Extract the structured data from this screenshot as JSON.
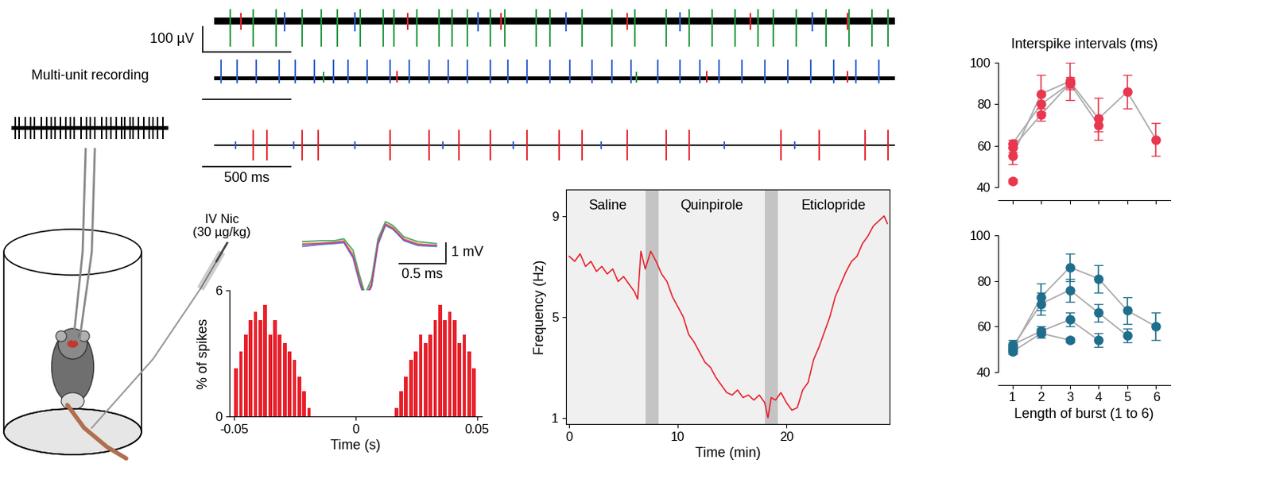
{
  "chart_data": [
    {
      "type": "trace",
      "title": "Multi-unit recording",
      "xlim": [
        0,
        900
      ],
      "ylim": [
        -70,
        70
      ],
      "time_range": [
        0,
        900
      ],
      "noise": 10,
      "spikes": [
        {
          "color": "#000000",
          "lo": -60,
          "hi": 60,
          "times": [
            20,
            45,
            80,
            110,
            130,
            170,
            200,
            230,
            250,
            280,
            310,
            340,
            360,
            400,
            430,
            450,
            480,
            520,
            545,
            570,
            600,
            630,
            650,
            680,
            700,
            730,
            760,
            790,
            810,
            840,
            870
          ]
        }
      ]
    },
    {
      "type": "trace",
      "xlim": [
        -70,
        3870
      ],
      "ylim": [
        -110,
        70
      ],
      "time_range": [
        0,
        3870
      ],
      "noise": 14,
      "scale_time": 500,
      "scale_voltage": 100,
      "scale_voltage_label": "100 µV",
      "spikes": [
        {
          "color": "#1f9a3c",
          "lo": -100,
          "hi": 45,
          "times": [
            90,
            220,
            350,
            500,
            610,
            700,
            830,
            960,
            1020,
            1150,
            1280,
            1350,
            1440,
            1570,
            1650,
            1830,
            1910,
            2090,
            2260,
            2390,
            2570,
            2700,
            2830,
            2960,
            3090,
            3180,
            3310,
            3480,
            3610,
            3740,
            3830
          ]
        },
        {
          "color": "#e8202a",
          "lo": -35,
          "hi": 30,
          "times": [
            150,
            1100,
            1630,
            2350,
            3050,
            3600
          ]
        },
        {
          "color": "#2f5fd0",
          "lo": -40,
          "hi": 35,
          "times": [
            400,
            800,
            1500,
            2000,
            2650,
            3400
          ]
        }
      ]
    },
    {
      "type": "trace",
      "xlim": [
        -70,
        3870
      ],
      "ylim": [
        -40,
        80
      ],
      "time_range": [
        0,
        3870
      ],
      "noise": 7,
      "scale_time": 500,
      "spikes": [
        {
          "color": "#2f5fd0",
          "lo": -20,
          "hi": 75,
          "times": [
            40,
            130,
            240,
            370,
            460,
            570,
            680,
            760,
            870,
            1000,
            1110,
            1220,
            1330,
            1440,
            1570,
            1670,
            1780,
            1910,
            2020,
            2150,
            2260,
            2370,
            2520,
            2650,
            2760,
            2870,
            3000,
            3130,
            3260,
            3390,
            3520,
            3650,
            3780
          ]
        },
        {
          "color": "#e8202a",
          "lo": -15,
          "hi": 30,
          "times": [
            1040,
            2800,
            3600
          ]
        },
        {
          "color": "#1f9a3c",
          "lo": -15,
          "hi": 25,
          "times": [
            620,
            2400
          ]
        }
      ]
    },
    {
      "type": "trace",
      "xlim": [
        -70,
        3870
      ],
      "ylim": [
        -70,
        70
      ],
      "time_range": [
        0,
        3870
      ],
      "noise": 4,
      "scale_time": 500,
      "scale_time_label": "500 ms",
      "spikes": [
        {
          "color": "#2f5fd0",
          "lo": -15,
          "hi": 15,
          "times": [
            120,
            450,
            800,
            1300,
            1700,
            2200,
            2900,
            3300
          ]
        },
        {
          "color": "#e8202a",
          "lo": -60,
          "hi": 60,
          "times": [
            220,
            300,
            500,
            590,
            1000,
            1220,
            1390,
            1570,
            1780,
            1960,
            2090,
            2350,
            2570,
            2700,
            3220,
            3440,
            3700,
            3830
          ]
        }
      ]
    },
    {
      "type": "waveform",
      "xlim": [
        0,
        1.9
      ],
      "ylim": [
        -3.2,
        2
      ],
      "t": [
        0,
        0.2,
        0.35,
        0.45,
        0.55,
        0.62,
        0.68,
        0.75,
        0.82,
        0.9,
        0.98,
        1.1,
        1.25,
        1.45
      ],
      "waveforms": [
        {
          "color": "#e8a03a",
          "values": [
            0.05,
            0.08,
            0.12,
            0.2,
            -0.5,
            -1.8,
            -2.8,
            -2.0,
            0.2,
            1.1,
            0.9,
            0.3,
            0.05,
            -0.05
          ]
        },
        {
          "color": "#3a6fd8",
          "values": [
            -0.1,
            0.0,
            0.05,
            0.1,
            -0.7,
            -2.0,
            -2.9,
            -2.2,
            0.0,
            1.0,
            0.8,
            0.2,
            -0.05,
            -0.1
          ]
        },
        {
          "color": "#3aa05a",
          "values": [
            0.15,
            0.2,
            0.2,
            0.3,
            -0.3,
            -1.6,
            -2.6,
            -1.8,
            0.3,
            1.2,
            1.0,
            0.4,
            0.15,
            0.05
          ]
        },
        {
          "color": "#c83a8a",
          "values": [
            0.0,
            0.05,
            0.1,
            0.15,
            -0.6,
            -1.9,
            -2.75,
            -2.1,
            0.1,
            1.05,
            0.85,
            0.25,
            0.0,
            -0.05
          ]
        }
      ],
      "scale_time": 0.5,
      "scale_time_label": "0.5 ms",
      "scale_voltage": 1,
      "scale_voltage_label": "1 mV"
    },
    {
      "type": "histogram",
      "xlabel": "Time (s)",
      "ylabel": "% of spikes",
      "color": "#e8202a",
      "bins": [
        -0.05,
        -0.048,
        -0.046,
        -0.044,
        -0.042,
        -0.04,
        -0.038,
        -0.036,
        -0.034,
        -0.032,
        -0.03,
        -0.028,
        -0.026,
        -0.024,
        -0.022,
        -0.02,
        -0.018,
        -0.016,
        -0.014,
        -0.012,
        -0.01,
        -0.008,
        -0.006,
        -0.004,
        -0.002,
        0,
        0.002,
        0.004,
        0.006,
        0.008,
        0.01,
        0.012,
        0.014,
        0.016,
        0.018,
        0.02,
        0.022,
        0.024,
        0.026,
        0.028,
        0.03,
        0.032,
        0.034,
        0.036,
        0.038,
        0.04,
        0.042,
        0.044,
        0.046,
        0.048,
        0.05
      ],
      "counts": [
        2.3,
        3.1,
        3.9,
        4.6,
        5.0,
        4.6,
        5.3,
        3.9,
        4.6,
        3.9,
        3.5,
        3.1,
        2.7,
        1.9,
        1.2,
        0.4,
        0,
        0,
        0,
        0,
        0,
        0,
        0,
        0,
        0,
        0,
        0,
        0,
        0,
        0,
        0,
        0,
        0,
        0.4,
        1.2,
        1.9,
        2.7,
        3.1,
        3.9,
        3.5,
        3.9,
        4.6,
        5.3,
        4.6,
        5.0,
        4.6,
        3.5,
        3.9,
        3.1,
        2.3
      ],
      "xlim": [
        -0.052,
        0.052
      ],
      "ylim": [
        0,
        6
      ],
      "xticks": [
        -0.05,
        0,
        0.05
      ],
      "yticks": [
        0,
        6
      ]
    },
    {
      "type": "line",
      "xlabel": "Time (min)",
      "ylabel": "Frequency (Hz)",
      "color": "#e8202a",
      "x": [
        0,
        0.5,
        1,
        1.5,
        2,
        2.5,
        3,
        3.5,
        4,
        4.5,
        5,
        5.5,
        6,
        6.3,
        6.6,
        7,
        7.5,
        8,
        8.5,
        9,
        9.5,
        10,
        10.5,
        11,
        11.5,
        12,
        12.5,
        13,
        13.5,
        14,
        14.5,
        15,
        15.5,
        16,
        16.5,
        17,
        17.5,
        18,
        18.3,
        18.6,
        19,
        19.5,
        20,
        20.5,
        21,
        21.5,
        22,
        22.5,
        23,
        23.5,
        24,
        24.5,
        25,
        25.5,
        26,
        26.5,
        27,
        27.5,
        28,
        28.5,
        29,
        29.3
      ],
      "values": [
        7.4,
        7.2,
        7.5,
        7.0,
        7.2,
        6.8,
        7.0,
        6.7,
        6.9,
        6.4,
        6.6,
        6.3,
        6.0,
        5.7,
        7.6,
        6.9,
        7.6,
        7.2,
        6.7,
        6.4,
        5.8,
        5.4,
        5.0,
        4.3,
        4.0,
        3.6,
        3.2,
        3.0,
        2.6,
        2.3,
        2.0,
        1.9,
        2.1,
        1.8,
        1.9,
        1.7,
        1.9,
        1.6,
        1.0,
        1.8,
        1.7,
        2.0,
        1.6,
        1.3,
        1.4,
        2.1,
        2.4,
        3.3,
        3.8,
        4.4,
        5.0,
        5.8,
        6.3,
        6.8,
        7.2,
        7.4,
        7.9,
        8.2,
        8.6,
        8.8,
        9.0,
        8.7
      ],
      "periods": [
        {
          "label": "Saline",
          "start": 0,
          "end": 7
        },
        {
          "label": "Quinpirole",
          "start": 8.2,
          "end": 18
        },
        {
          "label": "Eticlopride",
          "start": 19.2,
          "end": 29.5
        }
      ],
      "injections": [
        [
          7,
          8.2
        ],
        [
          18,
          19.2
        ]
      ],
      "xlim": [
        -0.3,
        29.5
      ],
      "ylim": [
        0.75,
        10.05
      ],
      "xticks": [
        0,
        10,
        20
      ],
      "yticks": [
        1,
        5,
        9
      ]
    },
    {
      "type": "errorbar",
      "title": "Interspike intervals (ms)",
      "color": "#e8374f",
      "tick_labels": "y",
      "x": [
        1,
        2,
        3,
        4,
        5,
        6
      ],
      "series": [
        {
          "values": [
            55,
            85,
            91,
            73,
            86,
            63
          ],
          "errors": [
            4,
            9,
            9,
            10,
            8,
            8
          ]
        },
        {
          "values": [
            61,
            80,
            90,
            70,
            null,
            null
          ],
          "errors": [
            2,
            4,
            3,
            3,
            null,
            null
          ]
        },
        {
          "values": [
            59,
            75,
            90,
            null,
            null,
            null
          ],
          "errors": [
            2,
            3,
            2,
            null,
            null,
            null
          ]
        },
        {
          "values": [
            43,
            null,
            null,
            null,
            null,
            null
          ],
          "errors": [
            1,
            null,
            null,
            null,
            null,
            null
          ]
        }
      ],
      "xlim": [
        0.5,
        6.5
      ],
      "ylim": [
        40,
        100
      ],
      "xticks": [
        1,
        2,
        3,
        4,
        5,
        6
      ],
      "yticks": [
        40,
        60,
        80,
        100
      ]
    },
    {
      "type": "errorbar",
      "xlabel": "Length of burst (1 to 6)",
      "color": "#1f6e8c",
      "x": [
        1,
        2,
        3,
        4,
        5,
        6
      ],
      "series": [
        {
          "values": [
            50,
            73,
            86,
            81,
            67,
            60
          ],
          "errors": [
            2,
            6,
            6,
            6,
            6,
            6
          ]
        },
        {
          "values": [
            51,
            70,
            76,
            66,
            56,
            null
          ],
          "errors": [
            2,
            5,
            5,
            4,
            3,
            null
          ]
        },
        {
          "values": [
            52,
            58,
            63,
            54,
            null,
            null
          ],
          "errors": [
            2,
            2,
            3,
            3,
            null,
            null
          ]
        },
        {
          "values": [
            49,
            57,
            54,
            null,
            null,
            null
          ],
          "errors": [
            1,
            2,
            1,
            null,
            null,
            null
          ]
        }
      ],
      "xlim": [
        0.5,
        6.5
      ],
      "ylim": [
        40,
        100
      ],
      "xticks": [
        1,
        2,
        3,
        4,
        5,
        6
      ],
      "yticks": [
        40,
        60,
        80,
        100
      ]
    }
  ],
  "diagram": {
    "injection_label": "IV Nic\n(30 µg/kg)"
  }
}
